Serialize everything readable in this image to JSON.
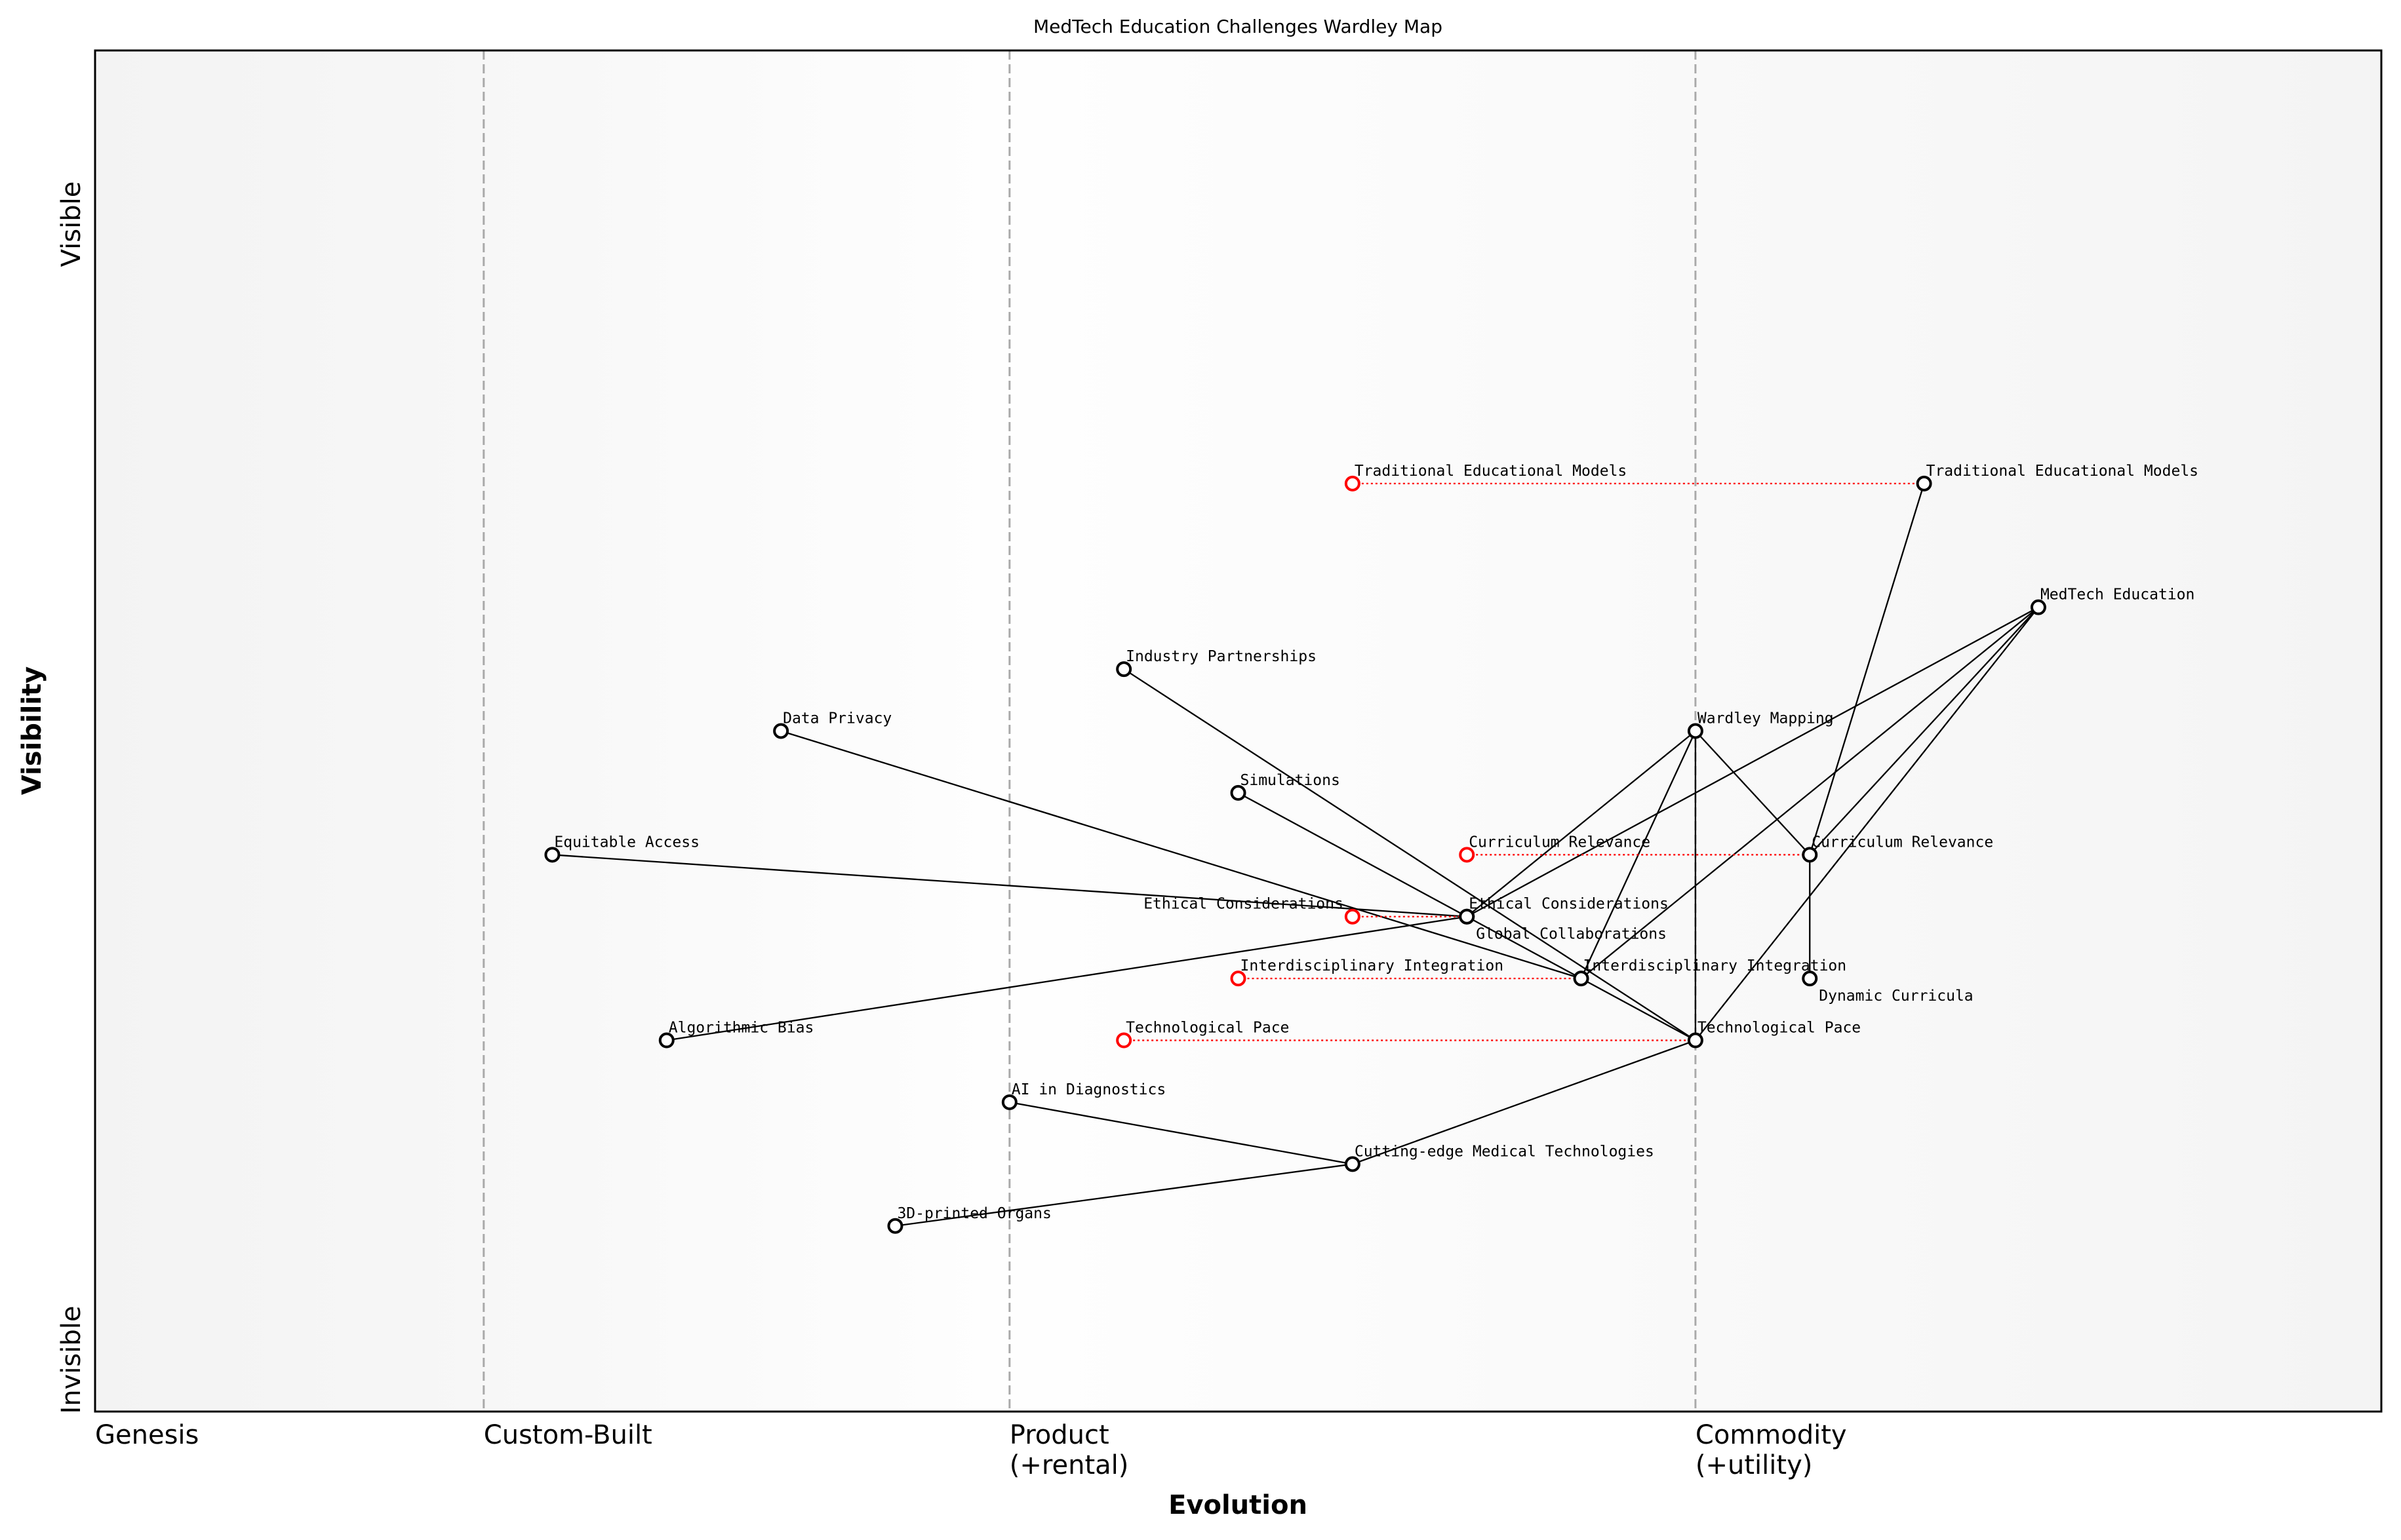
{
  "chart_data": {
    "type": "wardley-map",
    "title": "MedTech Education Challenges Wardley Map",
    "xlabel": "Evolution",
    "ylabel": "Visibility",
    "xlim": [
      0,
      1
    ],
    "ylim": [
      0,
      1.1
    ],
    "grid": false,
    "evolution_stages": [
      {
        "label": "Genesis",
        "x": 0.0,
        "line": false
      },
      {
        "label": "Custom-Built",
        "x": 0.17,
        "line": true
      },
      {
        "label": "Product\n(+rental)",
        "x": 0.4,
        "line": true
      },
      {
        "label": "Commodity\n(+utility)",
        "x": 0.7,
        "line": true
      }
    ],
    "visibility_labels": {
      "top": "Visible",
      "bottom": "Invisible"
    },
    "colors": {
      "component": "#000000",
      "previous_position": "#ff0000",
      "stage_line": "#aaaaaa",
      "genesis_band": "#f3f3f3",
      "product_band": "#fefefe",
      "commodity_band": "#f5f5f5"
    },
    "components": [
      {
        "name": "Traditional Educational Models",
        "x": 0.8,
        "y": 0.75
      },
      {
        "name": "MedTech Education",
        "x": 0.85,
        "y": 0.65
      },
      {
        "name": "Industry Partnerships",
        "x": 0.45,
        "y": 0.6
      },
      {
        "name": "Wardley Mapping",
        "x": 0.7,
        "y": 0.55
      },
      {
        "name": "Data Privacy",
        "x": 0.3,
        "y": 0.55
      },
      {
        "name": "Simulations",
        "x": 0.5,
        "y": 0.5
      },
      {
        "name": "Curriculum Relevance",
        "x": 0.75,
        "y": 0.45
      },
      {
        "name": "Equitable Access",
        "x": 0.2,
        "y": 0.45
      },
      {
        "name": "Ethical Considerations",
        "x": 0.6,
        "y": 0.4
      },
      {
        "name": "Global Collaborations",
        "x": 0.6,
        "y": 0.4
      },
      {
        "name": "Interdisciplinary Integration",
        "x": 0.65,
        "y": 0.35
      },
      {
        "name": "Dynamic Curricula",
        "x": 0.75,
        "y": 0.35
      },
      {
        "name": "Technological Pace",
        "x": 0.7,
        "y": 0.3
      },
      {
        "name": "Algorithmic Bias",
        "x": 0.25,
        "y": 0.3
      },
      {
        "name": "AI in Diagnostics",
        "x": 0.4,
        "y": 0.25
      },
      {
        "name": "Cutting-edge Medical Technologies",
        "x": 0.55,
        "y": 0.2
      },
      {
        "name": "3D-printed Organs",
        "x": 0.35,
        "y": 0.15
      }
    ],
    "previous_positions": [
      {
        "name": "Traditional Educational Models",
        "x": 0.55,
        "y": 0.75
      },
      {
        "name": "Curriculum Relevance",
        "x": 0.6,
        "y": 0.45
      },
      {
        "name": "Ethical Considerations",
        "x": 0.55,
        "y": 0.4
      },
      {
        "name": "Interdisciplinary Integration",
        "x": 0.5,
        "y": 0.35
      },
      {
        "name": "Technological Pace",
        "x": 0.45,
        "y": 0.3
      }
    ],
    "links": [
      [
        "Traditional Educational Models",
        "Curriculum Relevance"
      ],
      [
        "MedTech Education",
        "Ethical Considerations"
      ],
      [
        "MedTech Education",
        "Interdisciplinary Integration"
      ],
      [
        "MedTech Education",
        "Curriculum Relevance"
      ],
      [
        "MedTech Education",
        "Technological Pace"
      ],
      [
        "Wardley Mapping",
        "Ethical Considerations"
      ],
      [
        "Wardley Mapping",
        "Interdisciplinary Integration"
      ],
      [
        "Wardley Mapping",
        "Curriculum Relevance"
      ],
      [
        "Wardley Mapping",
        "Technological Pace"
      ],
      [
        "Curriculum Relevance",
        "Dynamic Curricula"
      ],
      [
        "Industry Partnerships",
        "Technological Pace"
      ],
      [
        "Simulations",
        "Technological Pace"
      ],
      [
        "Data Privacy",
        "Interdisciplinary Integration"
      ],
      [
        "Equitable Access",
        "Ethical Considerations"
      ],
      [
        "Algorithmic Bias",
        "Ethical Considerations"
      ],
      [
        "AI in Diagnostics",
        "Cutting-edge Medical Technologies"
      ],
      [
        "3D-printed Organs",
        "Cutting-edge Medical Technologies"
      ],
      [
        "Cutting-edge Medical Technologies",
        "Technological Pace"
      ]
    ]
  }
}
